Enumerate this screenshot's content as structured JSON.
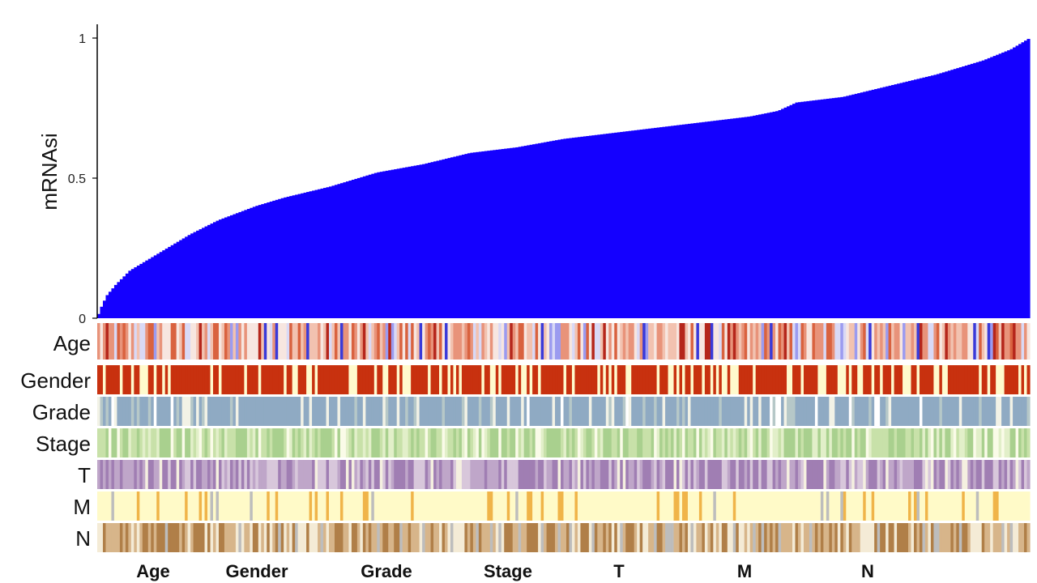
{
  "chart_data": {
    "type": "bar",
    "title": "",
    "xlabel": "",
    "ylabel": "mRNAsi",
    "ylim": [
      0,
      1
    ],
    "y_ticks": [
      {
        "value": 0,
        "label": "0"
      },
      {
        "value": 0.5,
        "label": "0.5"
      },
      {
        "value": 1,
        "label": "1"
      }
    ],
    "bar_color": "#1400FF",
    "n_samples": 330,
    "sorted": "ascending",
    "value_curve": [
      [
        0.0,
        0.0
      ],
      [
        0.003,
        0.03
      ],
      [
        0.01,
        0.08
      ],
      [
        0.02,
        0.12
      ],
      [
        0.035,
        0.17
      ],
      [
        0.05,
        0.2
      ],
      [
        0.08,
        0.26
      ],
      [
        0.1,
        0.3
      ],
      [
        0.13,
        0.35
      ],
      [
        0.17,
        0.4
      ],
      [
        0.2,
        0.43
      ],
      [
        0.25,
        0.47
      ],
      [
        0.3,
        0.52
      ],
      [
        0.35,
        0.55
      ],
      [
        0.4,
        0.59
      ],
      [
        0.45,
        0.61
      ],
      [
        0.5,
        0.64
      ],
      [
        0.55,
        0.66
      ],
      [
        0.6,
        0.68
      ],
      [
        0.65,
        0.7
      ],
      [
        0.7,
        0.72
      ],
      [
        0.73,
        0.74
      ],
      [
        0.75,
        0.77
      ],
      [
        0.8,
        0.79
      ],
      [
        0.85,
        0.83
      ],
      [
        0.9,
        0.87
      ],
      [
        0.95,
        0.92
      ],
      [
        0.98,
        0.96
      ],
      [
        1.0,
        1.0
      ]
    ],
    "annotation_tracks": [
      {
        "name": "Age",
        "palette": [
          "#3A3AD9",
          "#9B9BF0",
          "#D9D9F6",
          "#F7E6E0",
          "#F2C2B0",
          "#E8937A",
          "#D9623F",
          "#B5261B"
        ]
      },
      {
        "name": "Gender",
        "palette": [
          "#C8310F",
          "#FFFACD"
        ]
      },
      {
        "name": "Grade",
        "palette": [
          "#8FAAC3",
          "#B6C8C8",
          "#F2F2E6",
          "#FFFFFF"
        ]
      },
      {
        "name": "Stage",
        "palette": [
          "#A9D08E",
          "#C8E1A9",
          "#E2EFC9",
          "#FAFBE8"
        ]
      },
      {
        "name": "T",
        "palette": [
          "#A07EB3",
          "#BFA6C9",
          "#D8C7DB",
          "#F5F0E0"
        ]
      },
      {
        "name": "M",
        "palette": [
          "#FFFAC8",
          "#F0B449",
          "#BDBDBD"
        ]
      },
      {
        "name": "N",
        "palette": [
          "#B07F48",
          "#D7B58A",
          "#F4EBD6",
          "#BDBDBD"
        ]
      }
    ],
    "legend_titles": [
      "Age",
      "Gender",
      "Grade",
      "Stage",
      "T",
      "M",
      "N"
    ]
  }
}
